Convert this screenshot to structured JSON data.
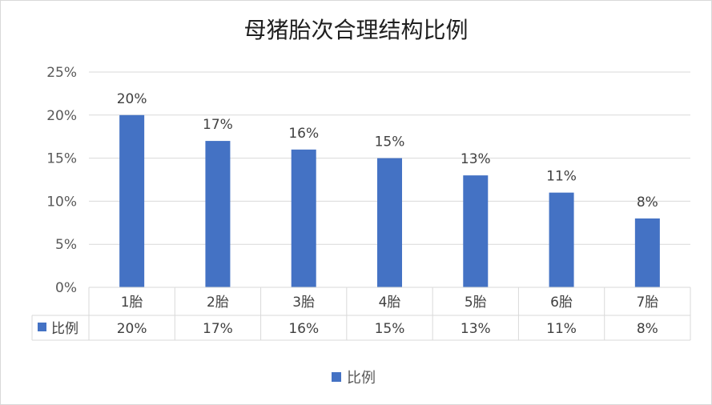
{
  "chart_data": {
    "type": "bar",
    "title": "母猪胎次合理结构比例",
    "categories": [
      "1胎",
      "2胎",
      "3胎",
      "4胎",
      "5胎",
      "6胎",
      "7胎"
    ],
    "series": [
      {
        "name": "比例",
        "values": [
          20,
          17,
          16,
          15,
          13,
          11,
          8
        ],
        "labels": [
          "20%",
          "17%",
          "16%",
          "15%",
          "13%",
          "11%",
          "8%"
        ]
      }
    ],
    "ylim": [
      0,
      25
    ],
    "yticks": [
      0,
      5,
      10,
      15,
      20,
      25
    ],
    "ytick_labels": [
      "0%",
      "5%",
      "10%",
      "15%",
      "20%",
      "25%"
    ],
    "grid": true,
    "data_table": true,
    "legend": "bottom",
    "colors": {
      "bar": "#4472c4",
      "grid": "#d9d9d9"
    }
  }
}
